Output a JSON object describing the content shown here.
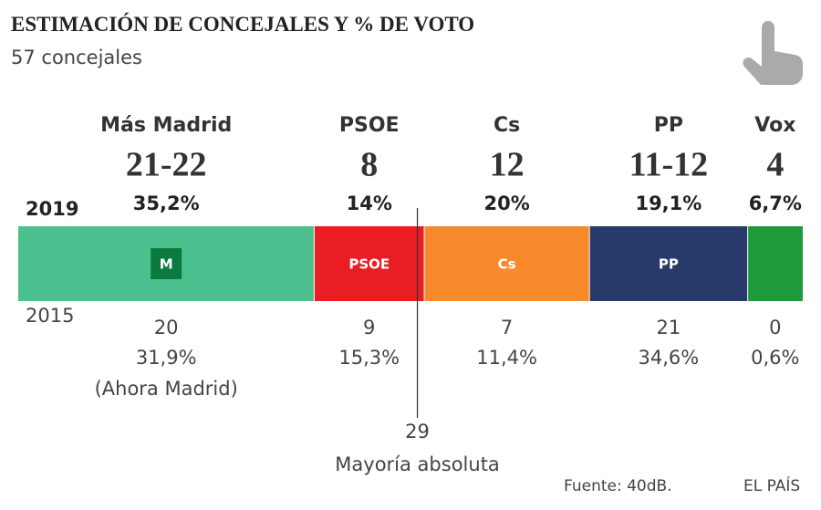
{
  "chart_data": {
    "type": "stacked-bar",
    "title": "ESTIMACIÓN DE CONCEJALES Y % DE VOTO",
    "subtitle": "57 concejales",
    "year_now": "2019",
    "year_prev": "2015",
    "xlim": [
      0,
      57
    ],
    "majority": {
      "value": 29,
      "label": "Mayoría absoluta"
    },
    "source": "Fuente: 40dB.",
    "brand": "EL PAÍS",
    "parties": [
      {
        "name": "Más Madrid",
        "color": "#4cc08e",
        "seats": [
          21,
          22
        ],
        "seats_label": "21-22",
        "vote": 35.2,
        "vote_label": "35,2%",
        "seats_2015": 20,
        "vote_2015": 31.9,
        "vote_2015_label": "31,9%",
        "note_2015": "(Ahora Madrid)",
        "logo": "M"
      },
      {
        "name": "PSOE",
        "color": "#ea1d25",
        "seats": 8,
        "vote": 14,
        "vote_label": "14%",
        "seats_2015": 9,
        "vote_2015": 15.3,
        "vote_2015_label": "15,3%",
        "logo": "PSOE"
      },
      {
        "name": "Cs",
        "color": "#f98a2b",
        "seats": 12,
        "vote": 20,
        "vote_label": "20%",
        "seats_2015": 7,
        "vote_2015": 11.4,
        "vote_2015_label": "11,4%",
        "logo": "Cs"
      },
      {
        "name": "PP",
        "color": "#283a6a",
        "seats": [
          11,
          12
        ],
        "seats_label": "11-12",
        "vote": 19.1,
        "vote_label": "19,1%",
        "seats_2015": 21,
        "vote_2015": 34.6,
        "vote_2015_label": "34,6%",
        "logo": "PP"
      },
      {
        "name": "Vox",
        "color": "#1d9b3b",
        "seats": 4,
        "vote": 6.7,
        "vote_label": "6,7%",
        "seats_2015": 0,
        "vote_2015": 0.6,
        "vote_2015_label": "0,6%"
      }
    ]
  }
}
